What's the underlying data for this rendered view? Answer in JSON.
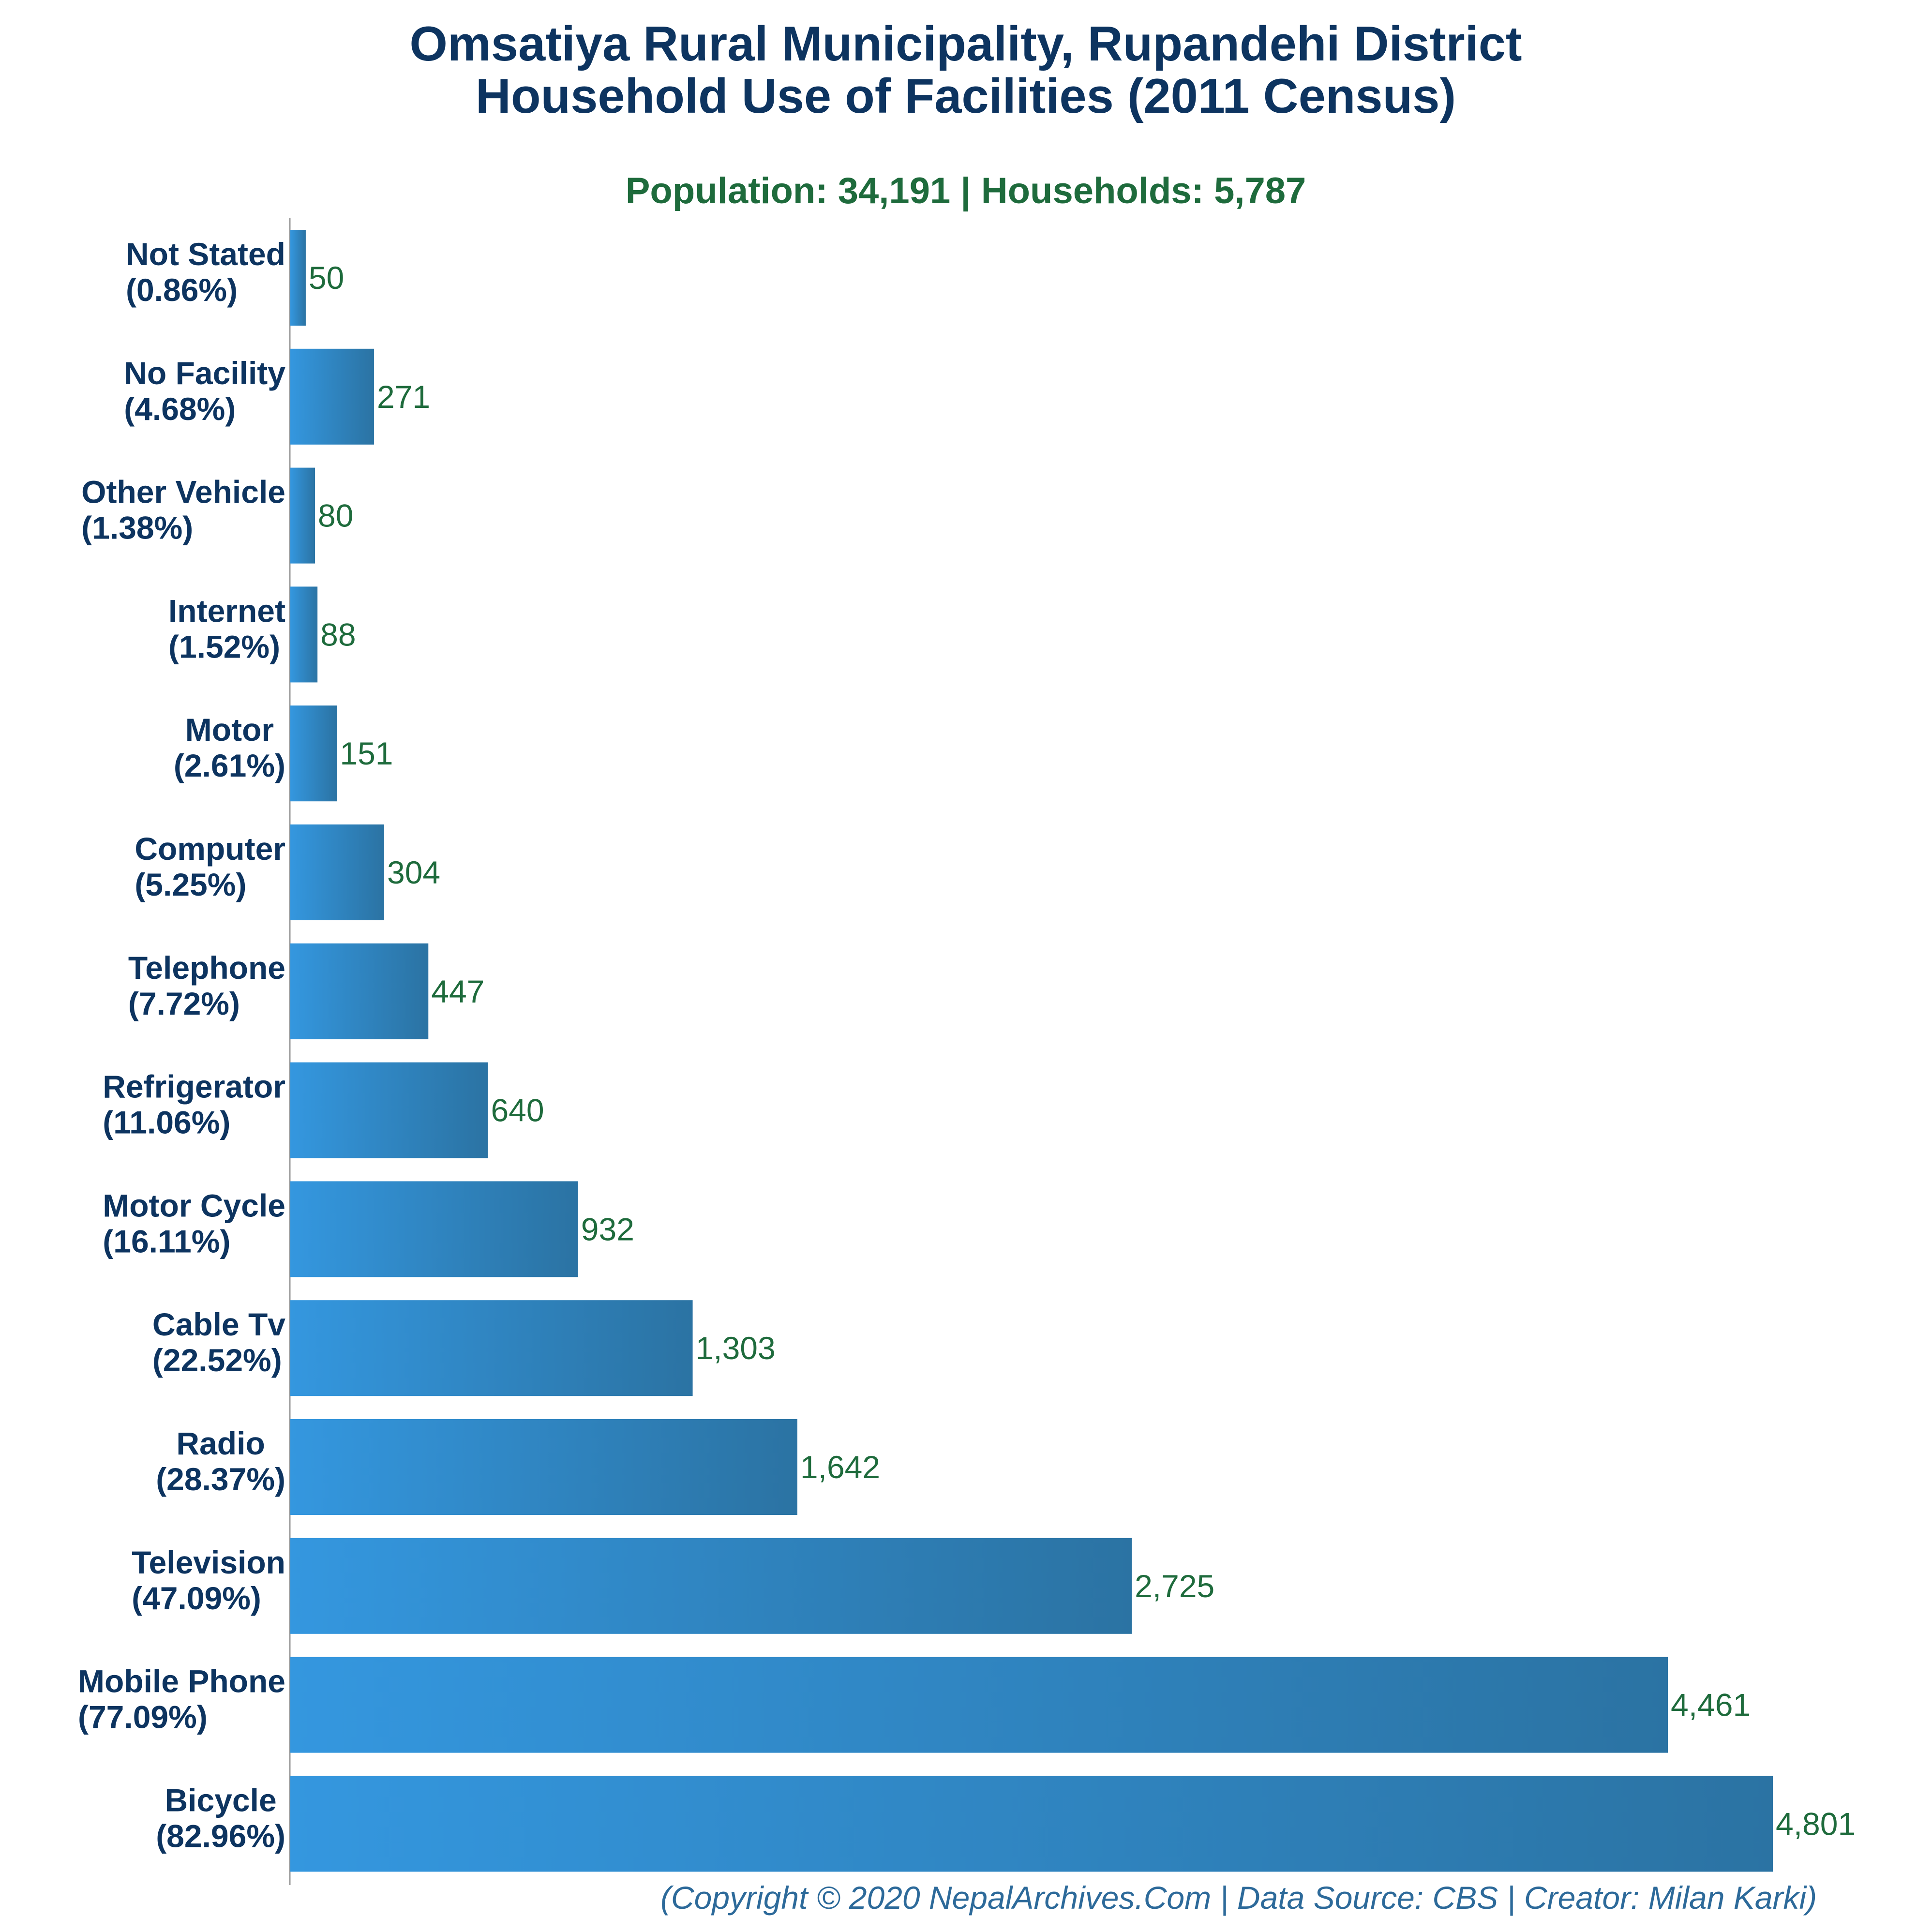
{
  "chart_data": {
    "type": "bar",
    "orientation": "horizontal",
    "title": [
      "Omsatiya Rural Municipality, Rupandehi District",
      "Household Use of Facilities (2011 Census)"
    ],
    "subtitle": "Population: 34,191 | Households: 5,787",
    "categories": [
      {
        "name": "Not Stated",
        "pct": "(0.86%)"
      },
      {
        "name": "No Facility",
        "pct": "(4.68%)"
      },
      {
        "name": "Other Vehicle",
        "pct": "(1.38%)"
      },
      {
        "name": "Internet",
        "pct": "(1.52%)"
      },
      {
        "name": "Motor",
        "pct": "(2.61%)"
      },
      {
        "name": "Computer",
        "pct": "(5.25%)"
      },
      {
        "name": "Telephone",
        "pct": "(7.72%)"
      },
      {
        "name": "Refrigerator",
        "pct": "(11.06%)"
      },
      {
        "name": "Motor Cycle",
        "pct": "(16.11%)"
      },
      {
        "name": "Cable Tv",
        "pct": "(22.52%)"
      },
      {
        "name": "Radio",
        "pct": "(28.37%)"
      },
      {
        "name": "Television",
        "pct": "(47.09%)"
      },
      {
        "name": "Mobile Phone",
        "pct": "(77.09%)"
      },
      {
        "name": "Bicycle",
        "pct": "(82.96%)"
      }
    ],
    "values": [
      50,
      271,
      80,
      88,
      151,
      304,
      447,
      640,
      932,
      1303,
      1642,
      2725,
      4461,
      4801
    ],
    "value_labels": [
      "50",
      "271",
      "80",
      "88",
      "151",
      "304",
      "447",
      "640",
      "932",
      "1,303",
      "1,642",
      "2,725",
      "4,461",
      "4,801"
    ],
    "xlim": [
      0,
      4801
    ],
    "grid": false,
    "legend": "none",
    "bar_color_start": "#3497df",
    "bar_color_end": "#2b73a3"
  },
  "credit": "(Copyright © 2020 NepalArchives.Com | Data Source: CBS | Creator: Milan Karki)"
}
